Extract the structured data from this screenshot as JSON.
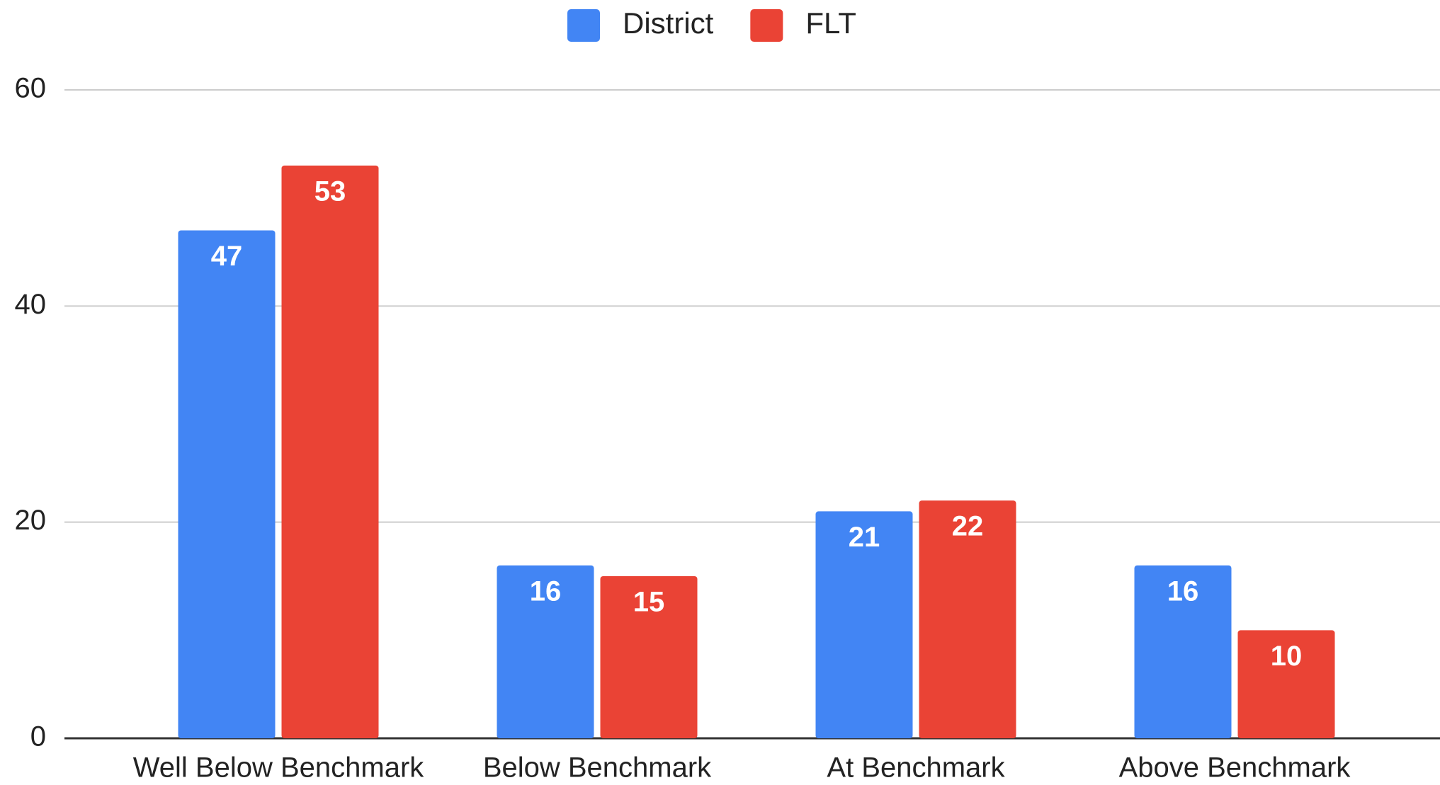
{
  "chart_data": {
    "type": "bar",
    "categories": [
      "Well Below Benchmark",
      "Below Benchmark",
      "At Benchmark",
      "Above Benchmark"
    ],
    "series": [
      {
        "name": "District",
        "color": "#4285f4",
        "values": [
          47,
          16,
          21,
          16
        ]
      },
      {
        "name": "FLT",
        "color": "#ea4335",
        "values": [
          53,
          15,
          22,
          10
        ]
      }
    ],
    "ylim": [
      0,
      60
    ],
    "yticks": [
      0,
      20,
      40,
      60
    ],
    "grid": true,
    "legend": "top"
  }
}
